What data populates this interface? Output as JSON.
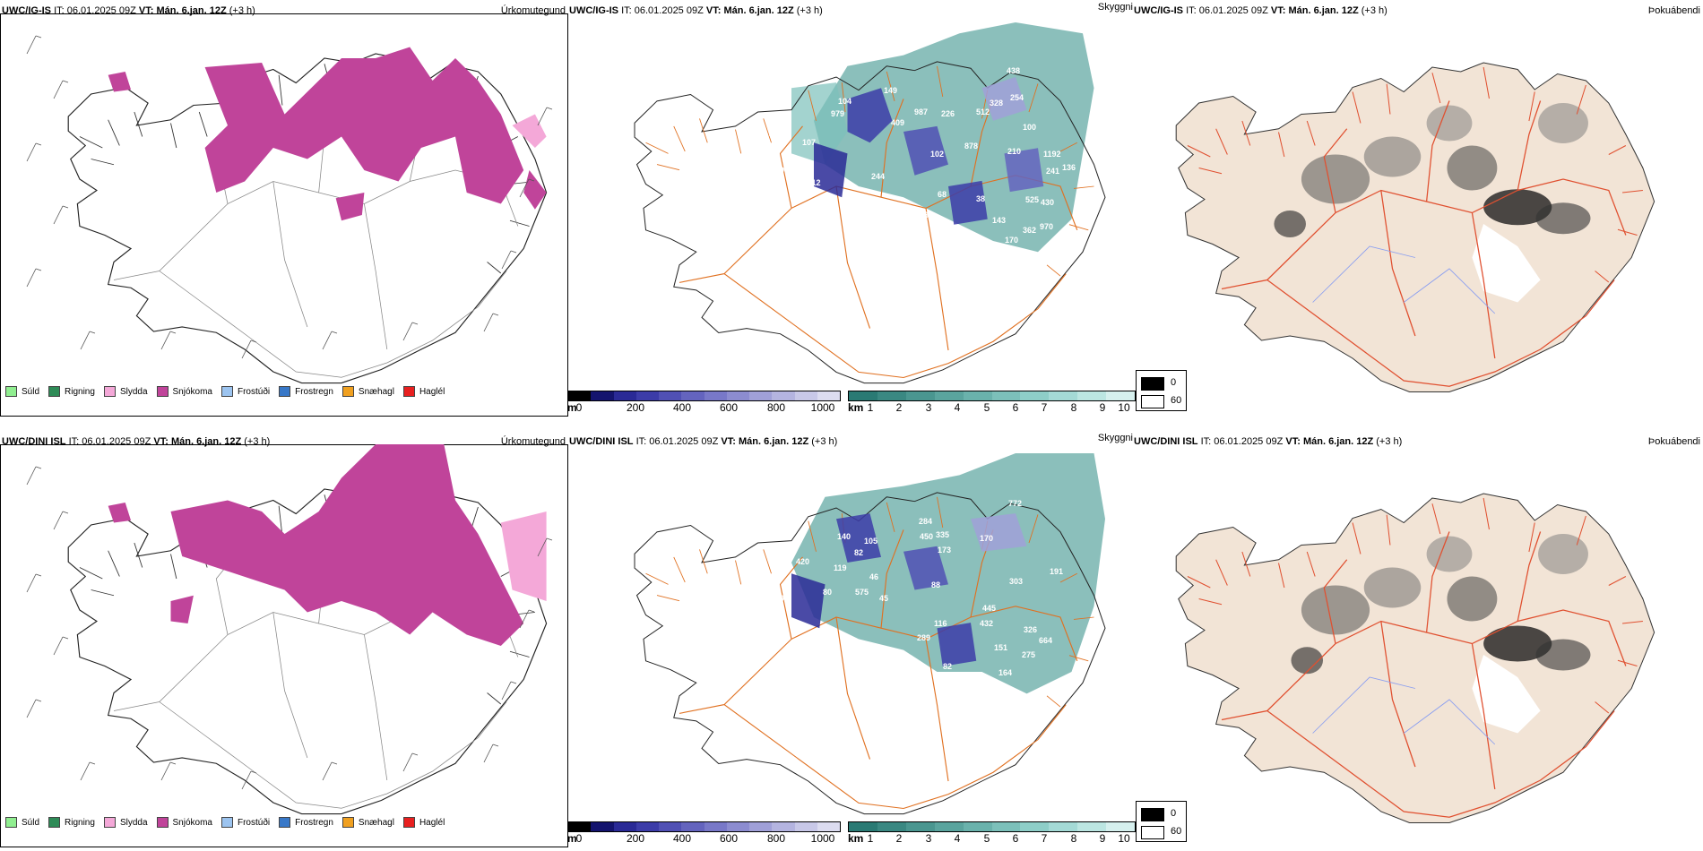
{
  "rows": [
    {
      "model": "UWC/IG-IS",
      "it_label": "IT:",
      "it_value": "06.01.2025 09Z",
      "vt_label": "VT:",
      "vt_value": "Mán. 6.jan. 12Z",
      "lead": "(+3 h)"
    },
    {
      "model": "UWC/DINI ISL",
      "it_label": "IT:",
      "it_value": "06.01.2025 09Z",
      "vt_label": "VT:",
      "vt_value": "Mán. 6.jan. 12Z",
      "lead": "(+3 h)"
    }
  ],
  "panel_titles": {
    "precip": "Úrkomutegund",
    "cloud": "Skyggni",
    "fog": "Þokuábendi"
  },
  "precip_legend": [
    {
      "label": "Súld",
      "color": "#90ee90"
    },
    {
      "label": "Rigning",
      "color": "#2e8b57"
    },
    {
      "label": "Slydda",
      "color": "#f4a8d8"
    },
    {
      "label": "Snjókoma",
      "color": "#c0449a"
    },
    {
      "label": "Frostúði",
      "color": "#9cc4f0"
    },
    {
      "label": "Frostregn",
      "color": "#3878c8"
    },
    {
      "label": "Snæhagl",
      "color": "#f0a020"
    },
    {
      "label": "Haglél",
      "color": "#e82020"
    }
  ],
  "cloudbase_bar": {
    "unit": "m",
    "ticks": [
      "0",
      "200",
      "400",
      "600",
      "800",
      "1000"
    ],
    "colors": [
      "#000000",
      "#14146e",
      "#2a2a96",
      "#3c3ca8",
      "#5050b4",
      "#6464be",
      "#7878c8",
      "#8c8cd0",
      "#a0a0d8",
      "#b4b4e0",
      "#c8c8e8",
      "#dcdcf0"
    ]
  },
  "visibility_bar": {
    "unit": "km",
    "ticks": [
      "1",
      "2",
      "3",
      "4",
      "5",
      "6",
      "7",
      "8",
      "9",
      "10"
    ],
    "colors": [
      "#2a7a74",
      "#3a8882",
      "#4a9690",
      "#5aa49e",
      "#6ab2ac",
      "#7cc0ba",
      "#8ecec8",
      "#a4dad6",
      "#bce6e2",
      "#d6f0ee"
    ]
  },
  "fog_box": {
    "low": "0",
    "high": "60"
  },
  "cloud_labels": {
    "top": [
      "438",
      "149",
      "104",
      "979",
      "987",
      "226",
      "328",
      "254",
      "512",
      "409",
      "100",
      "25",
      "107",
      "102",
      "878",
      "210",
      "1192",
      "136",
      "241",
      "96",
      "83",
      "112",
      "244",
      "68",
      "38",
      "525",
      "430",
      "233",
      "115",
      "114",
      "188",
      "161",
      "101",
      "143",
      "170",
      "362",
      "970",
      "165",
      "20",
      "81"
    ],
    "bottom": [
      "772",
      "284",
      "450",
      "335",
      "173",
      "170",
      "140",
      "105",
      "82",
      "420",
      "119",
      "80",
      "575",
      "46",
      "191",
      "133",
      "96",
      "45",
      "88",
      "303",
      "445",
      "432",
      "116",
      "326",
      "664",
      "275",
      "289",
      "104",
      "119",
      "204",
      "246",
      "82",
      "151",
      "189",
      "164",
      "33",
      "60"
    ]
  }
}
